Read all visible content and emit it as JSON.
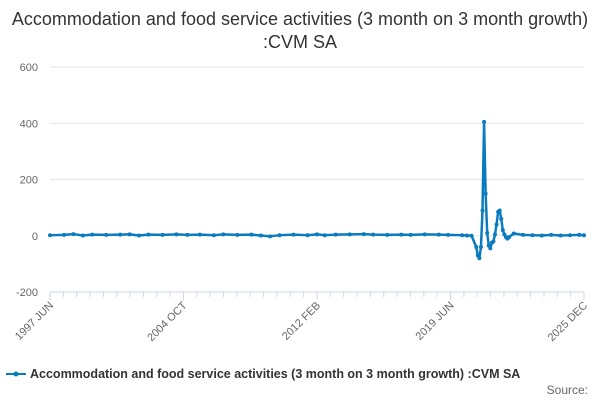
{
  "chart_data": {
    "type": "line",
    "title": "Accommodation and food service activities (3 month on 3 month growth) :CVM SA",
    "xlabel": "",
    "ylabel": "",
    "ylim": [
      -200,
      600
    ],
    "yticks": [
      -200,
      0,
      200,
      400,
      600
    ],
    "x_tick_labels": [
      "1997 JUN",
      "2004 OCT",
      "2012 FEB",
      "2019 JUN",
      "2025 DEC"
    ],
    "x_range": [
      "1997-06",
      "2025-12"
    ],
    "grid": true,
    "legend_position": "bottom",
    "series": [
      {
        "name": "Accommodation and food service activities (3 month on 3 month growth) :CVM SA",
        "color": "#0b7bc0",
        "points": [
          [
            "1997-06",
            2
          ],
          [
            "1998-03",
            3
          ],
          [
            "1998-09",
            6
          ],
          [
            "1999-03",
            1
          ],
          [
            "1999-09",
            4
          ],
          [
            "2000-06",
            3
          ],
          [
            "2001-03",
            4
          ],
          [
            "2001-09",
            5
          ],
          [
            "2002-03",
            1
          ],
          [
            "2002-09",
            4
          ],
          [
            "2003-06",
            3
          ],
          [
            "2004-03",
            5
          ],
          [
            "2004-10",
            3
          ],
          [
            "2005-06",
            4
          ],
          [
            "2006-03",
            2
          ],
          [
            "2006-09",
            5
          ],
          [
            "2007-06",
            3
          ],
          [
            "2008-03",
            4
          ],
          [
            "2008-09",
            1
          ],
          [
            "2009-03",
            -2
          ],
          [
            "2009-09",
            2
          ],
          [
            "2010-06",
            4
          ],
          [
            "2011-03",
            2
          ],
          [
            "2011-09",
            5
          ],
          [
            "2012-02",
            2
          ],
          [
            "2012-09",
            4
          ],
          [
            "2013-06",
            5
          ],
          [
            "2014-03",
            6
          ],
          [
            "2014-09",
            4
          ],
          [
            "2015-06",
            3
          ],
          [
            "2016-03",
            4
          ],
          [
            "2016-09",
            3
          ],
          [
            "2017-06",
            5
          ],
          [
            "2018-03",
            4
          ],
          [
            "2018-09",
            3
          ],
          [
            "2019-06",
            2
          ],
          [
            "2019-09",
            1
          ],
          [
            "2019-12",
            0
          ],
          [
            "2020-03",
            -40
          ],
          [
            "2020-04",
            -70
          ],
          [
            "2020-05",
            -80
          ],
          [
            "2020-06",
            -40
          ],
          [
            "2020-07",
            90
          ],
          [
            "2020-08",
            405
          ],
          [
            "2020-09",
            150
          ],
          [
            "2020-10",
            10
          ],
          [
            "2020-11",
            -35
          ],
          [
            "2020-12",
            -45
          ],
          [
            "2021-01",
            -25
          ],
          [
            "2021-02",
            -20
          ],
          [
            "2021-03",
            5
          ],
          [
            "2021-04",
            40
          ],
          [
            "2021-05",
            85
          ],
          [
            "2021-06",
            90
          ],
          [
            "2021-07",
            60
          ],
          [
            "2021-08",
            20
          ],
          [
            "2021-09",
            5
          ],
          [
            "2021-10",
            -5
          ],
          [
            "2021-11",
            -10
          ],
          [
            "2021-12",
            -5
          ],
          [
            "2022-03",
            8
          ],
          [
            "2022-09",
            3
          ],
          [
            "2023-03",
            2
          ],
          [
            "2023-09",
            1
          ],
          [
            "2024-03",
            3
          ],
          [
            "2024-09",
            1
          ],
          [
            "2025-03",
            2
          ],
          [
            "2025-09",
            3
          ],
          [
            "2025-12",
            2
          ]
        ]
      }
    ]
  },
  "source_label": "Source:"
}
